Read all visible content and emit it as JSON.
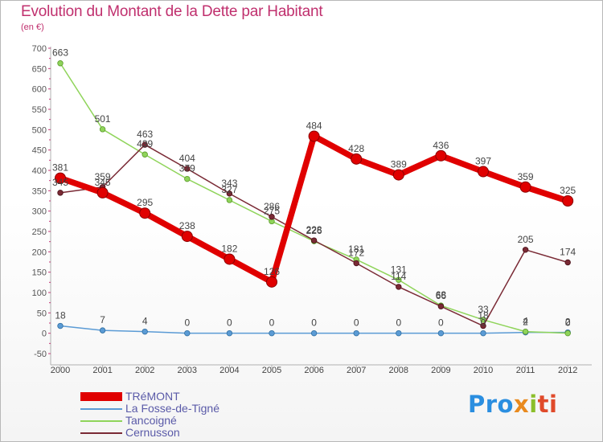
{
  "header": {
    "title": "Evolution du Montant de la Dette par Habitant",
    "subtitle": "(en €)"
  },
  "chart_data": {
    "type": "line",
    "title": "Evolution du Montant de la Dette par Habitant",
    "ylabel": "(en €)",
    "xlabel": "",
    "categories": [
      "2000",
      "2001",
      "2002",
      "2003",
      "2004",
      "2005",
      "2006",
      "2007",
      "2008",
      "2009",
      "2010",
      "2011",
      "2012"
    ],
    "ylim": [
      -50,
      700
    ],
    "yticks": [
      -50,
      0,
      50,
      100,
      150,
      200,
      250,
      300,
      350,
      400,
      450,
      500,
      550,
      600,
      650,
      700
    ],
    "series": [
      {
        "name": "TRéMONT",
        "color": "#e00000",
        "values": [
          381,
          345,
          295,
          238,
          182,
          126,
          484,
          428,
          389,
          436,
          397,
          359,
          325
        ]
      },
      {
        "name": "La Fosse-de-Tigné",
        "color": "#5b9bd5",
        "values": [
          18,
          7,
          4,
          0,
          0,
          0,
          0,
          0,
          0,
          0,
          0,
          2,
          2
        ]
      },
      {
        "name": "Tancoigné",
        "color": "#8fd45a",
        "values": [
          663,
          501,
          439,
          379,
          327,
          275,
          226,
          181,
          131,
          68,
          33,
          4,
          0
        ]
      },
      {
        "name": "Cernusson",
        "color": "#7a2a35",
        "values": [
          345,
          359,
          463,
          404,
          343,
          286,
          228,
          172,
          114,
          66,
          18,
          205,
          174
        ]
      }
    ],
    "data_labels": [
      {
        "series": 0,
        "index": 0,
        "text": "381"
      },
      {
        "series": 0,
        "index": 1,
        "text": "345"
      },
      {
        "series": 0,
        "index": 2,
        "text": "295"
      },
      {
        "series": 0,
        "index": 3,
        "text": "238"
      },
      {
        "series": 0,
        "index": 4,
        "text": "182"
      },
      {
        "series": 0,
        "index": 5,
        "text": "126"
      },
      {
        "series": 0,
        "index": 6,
        "text": "484"
      },
      {
        "series": 0,
        "index": 7,
        "text": "428"
      },
      {
        "series": 0,
        "index": 8,
        "text": "389"
      },
      {
        "series": 0,
        "index": 9,
        "text": "436"
      },
      {
        "series": 0,
        "index": 10,
        "text": "397"
      },
      {
        "series": 0,
        "index": 11,
        "text": "359"
      },
      {
        "series": 0,
        "index": 12,
        "text": "325"
      },
      {
        "series": 1,
        "index": 0,
        "text": "18"
      },
      {
        "series": 1,
        "index": 1,
        "text": "7"
      },
      {
        "series": 1,
        "index": 2,
        "text": "4"
      },
      {
        "series": 1,
        "index": 3,
        "text": "0"
      },
      {
        "series": 1,
        "index": 4,
        "text": "0"
      },
      {
        "series": 1,
        "index": 5,
        "text": "0"
      },
      {
        "series": 1,
        "index": 6,
        "text": "0"
      },
      {
        "series": 1,
        "index": 7,
        "text": "0"
      },
      {
        "series": 1,
        "index": 8,
        "text": "0"
      },
      {
        "series": 1,
        "index": 9,
        "text": "0"
      },
      {
        "series": 1,
        "index": 10,
        "text": "0"
      },
      {
        "series": 1,
        "index": 11,
        "text": "2"
      },
      {
        "series": 1,
        "index": 12,
        "text": "2"
      },
      {
        "series": 2,
        "index": 0,
        "text": "663"
      },
      {
        "series": 2,
        "index": 1,
        "text": "501"
      },
      {
        "series": 2,
        "index": 2,
        "text": "439"
      },
      {
        "series": 2,
        "index": 3,
        "text": "379"
      },
      {
        "series": 2,
        "index": 4,
        "text": "327"
      },
      {
        "series": 2,
        "index": 5,
        "text": "275"
      },
      {
        "series": 2,
        "index": 6,
        "text": "226"
      },
      {
        "series": 2,
        "index": 7,
        "text": "181"
      },
      {
        "series": 2,
        "index": 8,
        "text": "131"
      },
      {
        "series": 2,
        "index": 9,
        "text": "68"
      },
      {
        "series": 2,
        "index": 10,
        "text": "33"
      },
      {
        "series": 2,
        "index": 11,
        "text": "4"
      },
      {
        "series": 2,
        "index": 12,
        "text": "0"
      },
      {
        "series": 3,
        "index": 0,
        "text": "345"
      },
      {
        "series": 3,
        "index": 1,
        "text": "359"
      },
      {
        "series": 3,
        "index": 2,
        "text": "463"
      },
      {
        "series": 3,
        "index": 3,
        "text": "404"
      },
      {
        "series": 3,
        "index": 4,
        "text": "343"
      },
      {
        "series": 3,
        "index": 5,
        "text": "286"
      },
      {
        "series": 3,
        "index": 6,
        "text": "228"
      },
      {
        "series": 3,
        "index": 7,
        "text": "172"
      },
      {
        "series": 3,
        "index": 8,
        "text": "114"
      },
      {
        "series": 3,
        "index": 9,
        "text": "66"
      },
      {
        "series": 3,
        "index": 10,
        "text": "18"
      },
      {
        "series": 3,
        "index": 11,
        "text": "205"
      },
      {
        "series": 3,
        "index": 12,
        "text": "174"
      }
    ],
    "grid": false,
    "legend_position": "bottom-left"
  },
  "legend": {
    "items": [
      "TRéMONT",
      "La Fosse-de-Tigné",
      "Tancoigné",
      "Cernusson"
    ]
  },
  "logo": {
    "text": "Proxiti",
    "part1": "Pro",
    "part2": "x",
    "part3": "i",
    "part4": "ti"
  }
}
